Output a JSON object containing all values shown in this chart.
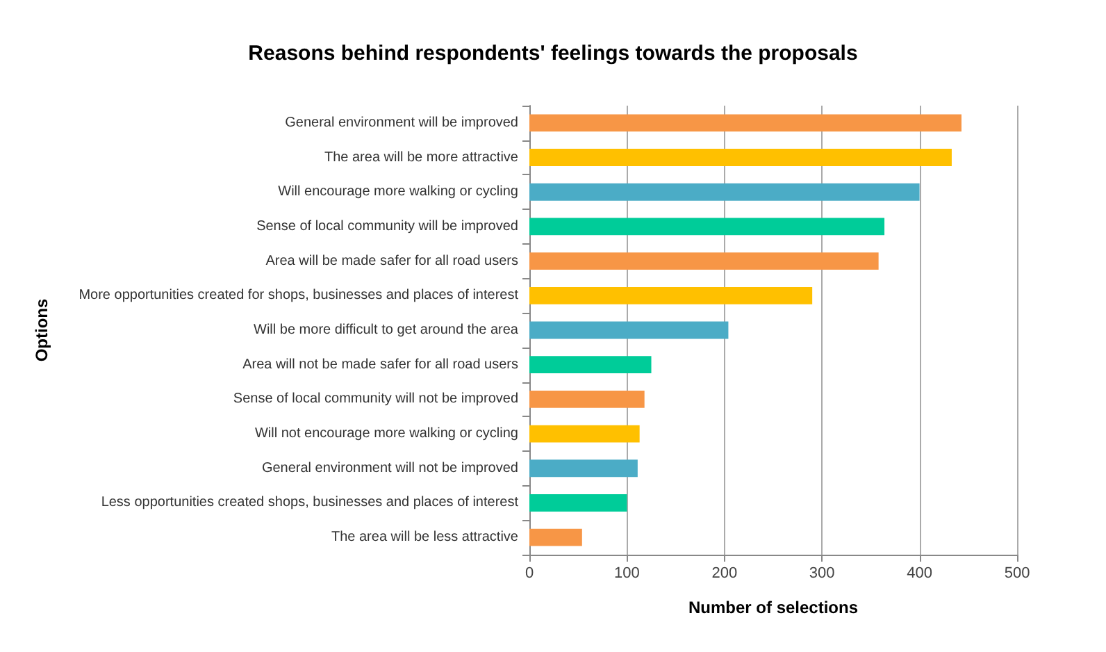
{
  "chart_data": {
    "type": "bar",
    "orientation": "horizontal",
    "title": "Reasons behind respondents' feelings towards the proposals",
    "xlabel": "Number of selections",
    "ylabel": "Options",
    "categories": [
      "General environment will be improved",
      "The area will be more attractive",
      "Will encourage more walking or cycling",
      "Sense of local community will be improved",
      "Area will be made safer for all road users",
      "More opportunities created for shops, businesses and places of interest",
      "Will be more difficult to get around the area",
      "Area will not be made safer for all road users",
      "Sense of local community will not be improved",
      "Will not encourage more walking or cycling",
      "General environment will not be improved",
      "Less opportunities created shops, businesses and places of interest",
      "The area will be less attractive"
    ],
    "values": [
      443,
      433,
      400,
      364,
      358,
      290,
      204,
      125,
      118,
      113,
      111,
      100,
      54
    ],
    "colors": [
      "#f79646",
      "#ffc000",
      "#4bacc6",
      "#00cc99",
      "#f79646",
      "#ffc000",
      "#4bacc6",
      "#00cc99",
      "#f79646",
      "#ffc000",
      "#4bacc6",
      "#00cc99",
      "#f79646"
    ],
    "xlim": [
      0,
      500
    ],
    "xticks": [
      0,
      100,
      200,
      300,
      400,
      500
    ],
    "grid": "x"
  }
}
